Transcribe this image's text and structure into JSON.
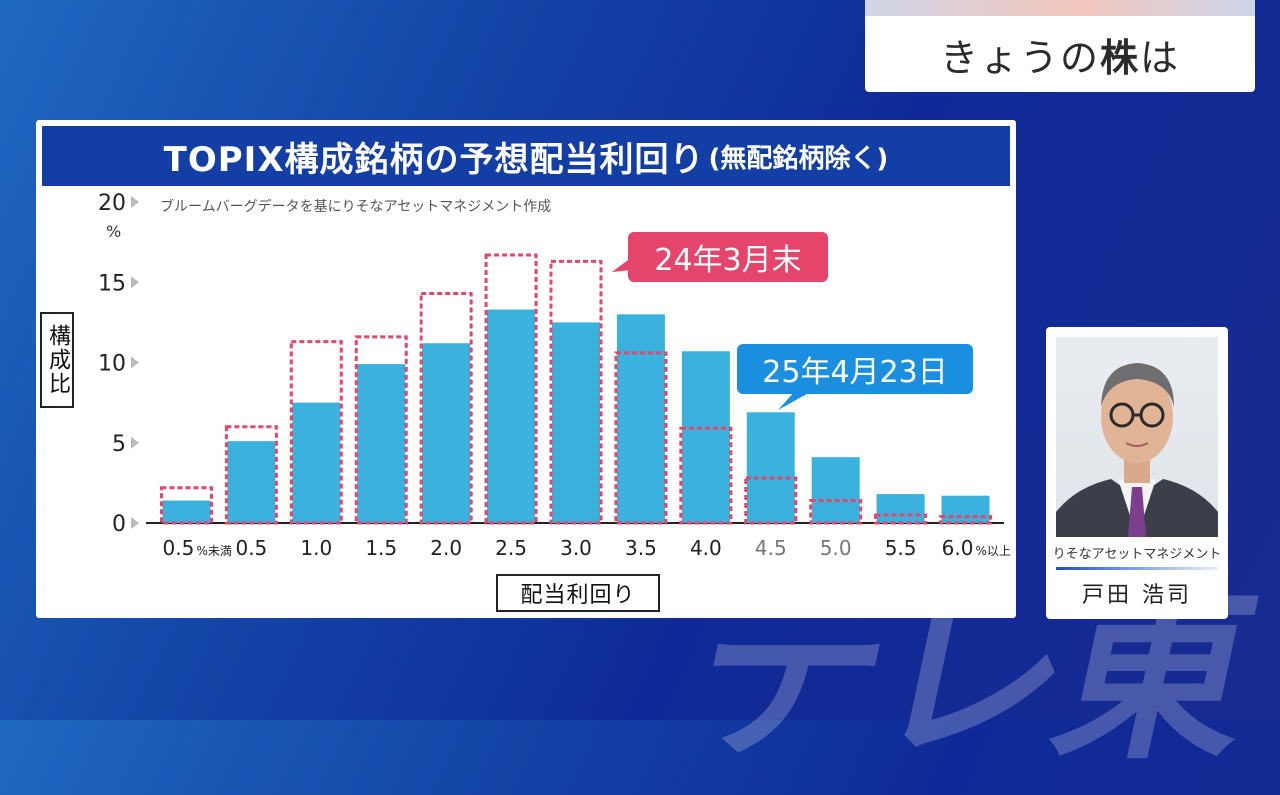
{
  "banner": {
    "pre": "きょうの",
    "emph": "株",
    "post": "は"
  },
  "watermark_text": "テレ東",
  "chart_data": {
    "type": "bar",
    "title": "TOPIX構成銘柄の予想配当利回り",
    "title_note": "(無配銘柄除く)",
    "source": "ブルームバーグデータを基にりそなアセットマネジメント作成",
    "ylabel": "構成比",
    "xlabel": "配当利回り",
    "y_unit": "%",
    "ylim": [
      0,
      20
    ],
    "yticks": [
      "0",
      "5",
      "10",
      "15",
      "20"
    ],
    "categories": [
      {
        "label": "0.5",
        "suffix": "%未満"
      },
      {
        "label": "0.5",
        "suffix": ""
      },
      {
        "label": "1.0",
        "suffix": ""
      },
      {
        "label": "1.5",
        "suffix": ""
      },
      {
        "label": "2.0",
        "suffix": ""
      },
      {
        "label": "2.5",
        "suffix": ""
      },
      {
        "label": "3.0",
        "suffix": ""
      },
      {
        "label": "3.5",
        "suffix": ""
      },
      {
        "label": "4.0",
        "suffix": ""
      },
      {
        "label": "4.5",
        "suffix": ""
      },
      {
        "label": "5.0",
        "suffix": ""
      },
      {
        "label": "5.5",
        "suffix": ""
      },
      {
        "label": "6.0",
        "suffix": "%以上"
      }
    ],
    "series": [
      {
        "name": "24年3月末",
        "style": "dashed-outline",
        "color": "#e5456b",
        "values": [
          2.2,
          6.0,
          11.3,
          11.6,
          14.3,
          16.7,
          16.3,
          10.6,
          5.9,
          2.8,
          1.4,
          0.5,
          0.4
        ]
      },
      {
        "name": "25年4月23日",
        "style": "filled",
        "color": "#3bb1de",
        "values": [
          1.4,
          5.1,
          7.5,
          9.9,
          11.2,
          13.3,
          12.5,
          13.0,
          10.7,
          6.9,
          4.1,
          1.8,
          1.7
        ]
      }
    ],
    "grid": false,
    "legend": "callouts"
  },
  "presenter": {
    "org": "りそなアセットマネジメント",
    "name": "戸田 浩司"
  }
}
